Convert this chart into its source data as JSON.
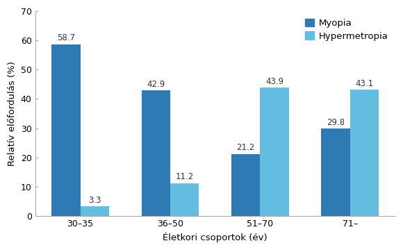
{
  "categories": [
    "30–35",
    "36–50",
    "51–70",
    "71–"
  ],
  "myopia_values": [
    58.7,
    42.9,
    21.2,
    29.8
  ],
  "hypermetropia_values": [
    3.3,
    11.2,
    43.9,
    43.1
  ],
  "myopia_color": "#2e7ab5",
  "hypermetropia_color": "#62bde0",
  "ylabel": "Relatív előfordulás (%)",
  "xlabel": "Életkori csoportok (év)",
  "ylim": [
    0,
    70
  ],
  "yticks": [
    0,
    10,
    20,
    30,
    40,
    50,
    60,
    70
  ],
  "legend_myopia": "Myopia",
  "legend_hypermetropia": "Hypermetropia",
  "bar_width": 0.32,
  "label_fontsize": 8.5,
  "axis_fontsize": 9.5,
  "tick_fontsize": 9
}
